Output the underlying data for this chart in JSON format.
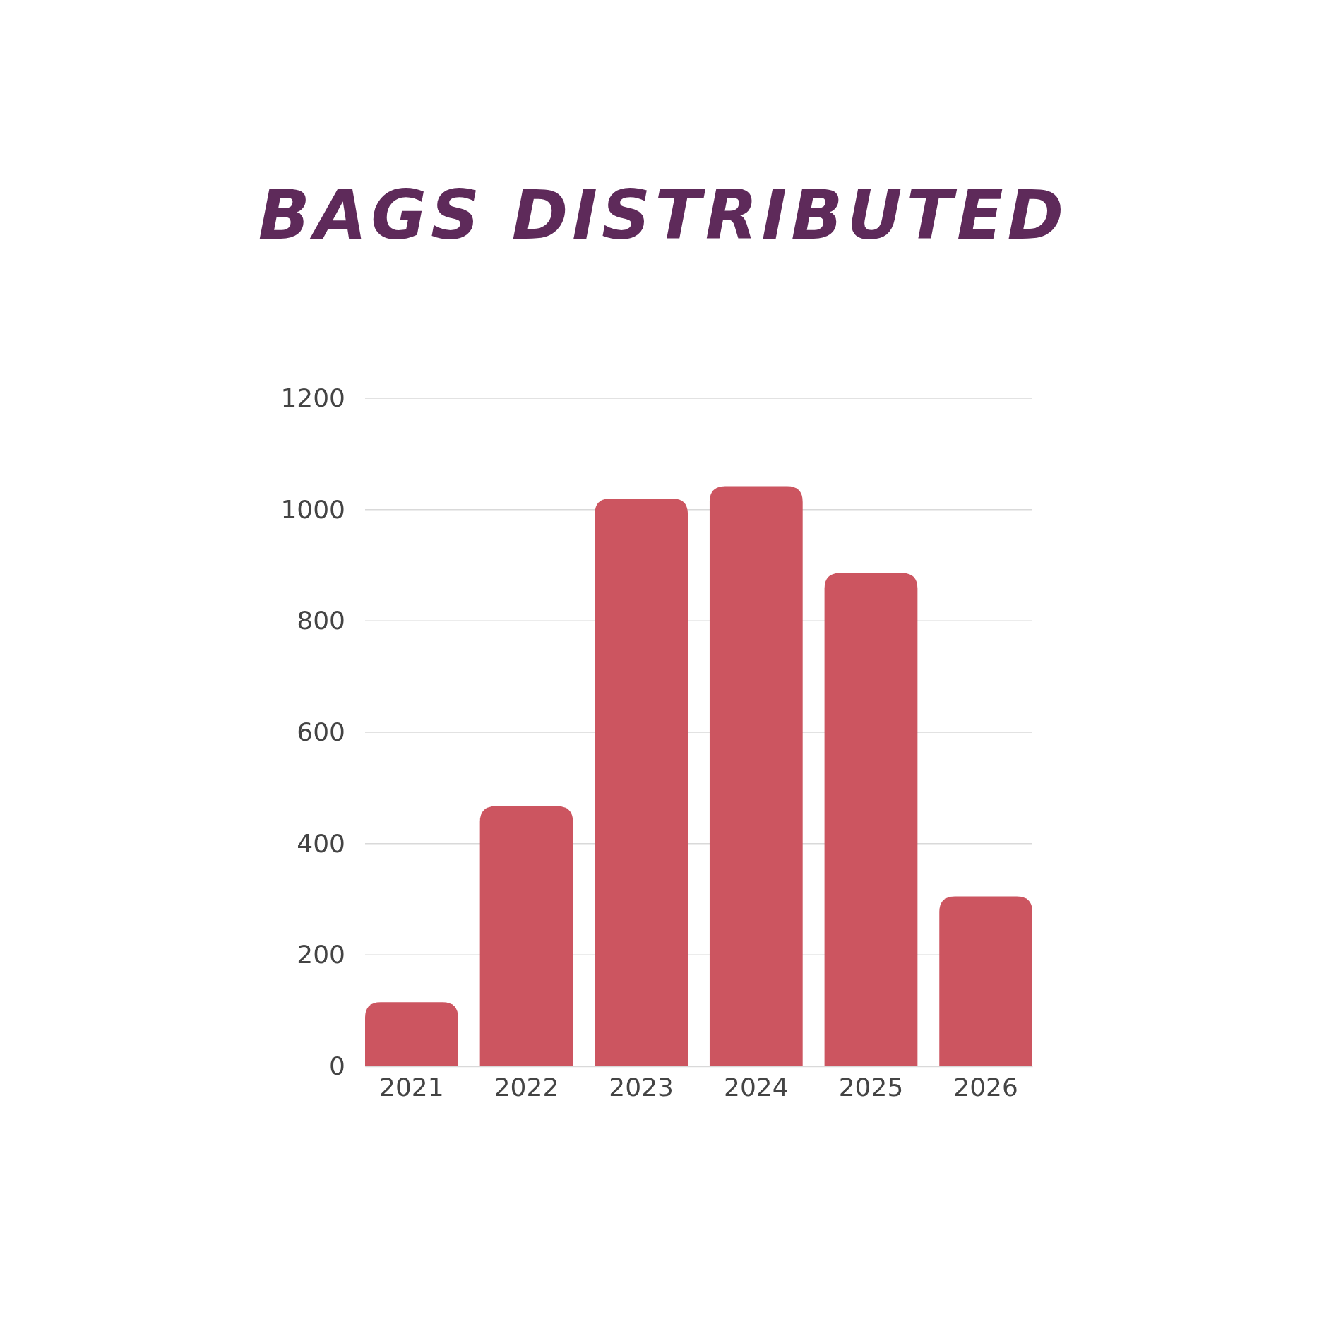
{
  "chart_data": {
    "type": "bar",
    "title": "BAGS DISTRIBUTED",
    "categories": [
      "2021",
      "2022",
      "2023",
      "2024",
      "2025",
      "2026"
    ],
    "values": [
      115,
      467,
      1020,
      1042,
      886,
      305
    ],
    "color": "#cc5560",
    "ylim": [
      0,
      1200
    ],
    "yticks": [
      0,
      200,
      400,
      600,
      800,
      1000,
      1200
    ],
    "grid": "y"
  }
}
